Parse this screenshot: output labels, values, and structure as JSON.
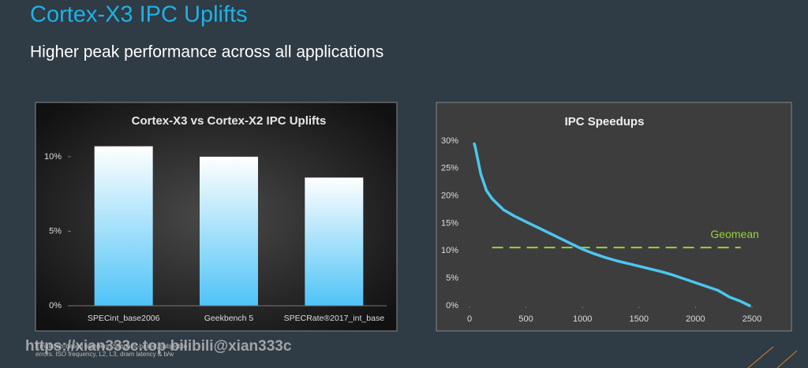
{
  "slide": {
    "title": "Cortex-X3 IPC Uplifts",
    "subtitle": "Higher peak performance across all applications",
    "footnote": [
      "Emulation-based numbers.  Simpoint-based, subject to",
      "errors.  ISO frequency, L2, L3, dram latency & b/w"
    ],
    "watermark": "https://xian333c.top bilibili@xian333c"
  },
  "chart_data": [
    {
      "type": "bar",
      "title": "Cortex-X3 vs Cortex-X2 IPC Uplifts",
      "categories": [
        "SPECint_base2006",
        "Geekbench 5",
        "SPECRate®2017_int_base"
      ],
      "values": [
        10.7,
        10.0,
        8.6
      ],
      "color": "#4fc3f7",
      "ylim": [
        0,
        11.5
      ],
      "yticks": [
        {
          "value": 0,
          "label": "0%"
        },
        {
          "value": 5,
          "label": "5%"
        },
        {
          "value": 10,
          "label": "10%"
        }
      ]
    },
    {
      "type": "line",
      "title": "IPC Speedups",
      "x": [
        42,
        50,
        100,
        150,
        200,
        300,
        400,
        500,
        600,
        700,
        800,
        900,
        1000,
        1100,
        1200,
        1300,
        1400,
        1500,
        1600,
        1700,
        1800,
        1900,
        2000,
        2100,
        2200,
        2300,
        2400,
        2480
      ],
      "values": [
        29.5,
        29,
        24,
        21,
        19.5,
        17.5,
        16.3,
        15.3,
        14.3,
        13.3,
        12.3,
        11.3,
        10.3,
        9.5,
        8.8,
        8.2,
        7.7,
        7.2,
        6.7,
        6.2,
        5.6,
        4.9,
        4.2,
        3.5,
        2.8,
        1.6,
        0.8,
        0
      ],
      "color": "#4cc6ef",
      "xlim": [
        0,
        2500
      ],
      "xticks": [
        0,
        500,
        1000,
        1500,
        2000,
        2500
      ],
      "ylim": [
        0,
        30
      ],
      "yticks": [
        {
          "value": 0,
          "label": "0%"
        },
        {
          "value": 5,
          "label": "5%"
        },
        {
          "value": 10,
          "label": "10%"
        },
        {
          "value": 15,
          "label": "15%"
        },
        {
          "value": 20,
          "label": "20%"
        },
        {
          "value": 25,
          "label": "25%"
        },
        {
          "value": 30,
          "label": "30%"
        }
      ],
      "reference_line": {
        "label": "Geomean",
        "value": 10.6,
        "x": [
          200,
          2400
        ],
        "color": "#9ad13a"
      }
    }
  ]
}
